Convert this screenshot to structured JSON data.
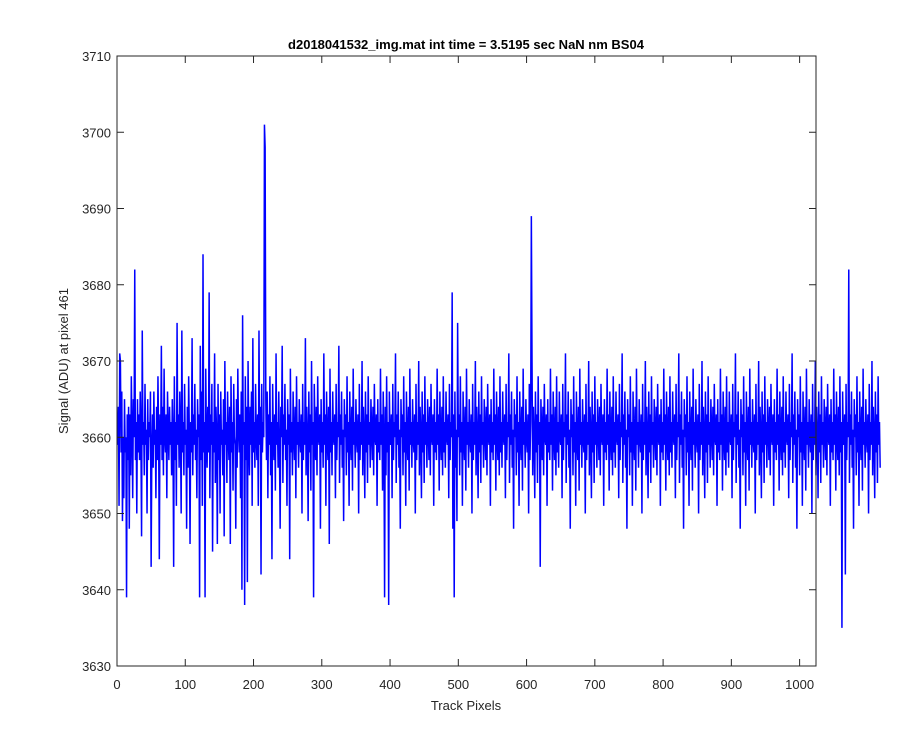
{
  "chart_data": {
    "type": "line",
    "title": "d2018041532_img.mat int time = 3.5195 sec  NaN nm BS04",
    "xlabel": "Track Pixels",
    "ylabel": "Signal (ADU) at pixel 461",
    "xlim": [
      0,
      1024
    ],
    "ylim": [
      3630,
      3710
    ],
    "xticks": [
      0,
      100,
      200,
      300,
      400,
      500,
      600,
      700,
      800,
      900,
      1000
    ],
    "yticks": [
      3630,
      3640,
      3650,
      3660,
      3670,
      3680,
      3690,
      3700,
      3710
    ],
    "grid": false,
    "line_color": "#0000ff",
    "series": [
      {
        "x_start": 1,
        "x_step": 1,
        "values": [
          3659,
          3664,
          3651,
          3671,
          3670,
          3658,
          3666,
          3649,
          3660,
          3652,
          3665,
          3658,
          3660,
          3639,
          3663,
          3657,
          3664,
          3648,
          3663,
          3655,
          3668,
          3661,
          3652,
          3665,
          3660,
          3682,
          3657,
          3662,
          3650,
          3665,
          3658,
          3663,
          3657,
          3666,
          3660,
          3647,
          3674,
          3659,
          3662,
          3655,
          3667,
          3659,
          3661,
          3650,
          3665,
          3657,
          3662,
          3660,
          3666,
          3643,
          3658,
          3663,
          3656,
          3666,
          3659,
          3661,
          3652,
          3664,
          3657,
          3668,
          3660,
          3644,
          3663,
          3659,
          3672,
          3657,
          3664,
          3655,
          3669,
          3660,
          3658,
          3663,
          3652,
          3666,
          3661,
          3657,
          3664,
          3659,
          3662,
          3655,
          3665,
          3660,
          3643,
          3668,
          3657,
          3662,
          3651,
          3675,
          3659,
          3663,
          3656,
          3666,
          3661,
          3650,
          3674,
          3658,
          3662,
          3655,
          3667,
          3659,
          3661,
          3648,
          3664,
          3656,
          3668,
          3660,
          3646,
          3662,
          3658,
          3673,
          3655,
          3663,
          3659,
          3667,
          3657,
          3661,
          3652,
          3665,
          3660,
          3663,
          3639,
          3672,
          3657,
          3666,
          3651,
          3684,
          3658,
          3662,
          3639,
          3669,
          3660,
          3656,
          3664,
          3658,
          3679,
          3652,
          3663,
          3659,
          3667,
          3645,
          3662,
          3658,
          3671,
          3654,
          3664,
          3660,
          3646,
          3667,
          3657,
          3663,
          3650,
          3666,
          3659,
          3661,
          3655,
          3665,
          3647,
          3670,
          3659,
          3662,
          3654,
          3666,
          3660,
          3657,
          3664,
          3646,
          3668,
          3658,
          3662,
          3653,
          3667,
          3660,
          3659,
          3648,
          3665,
          3656,
          3669,
          3661,
          3658,
          3663,
          3652,
          3666,
          3640,
          3676,
          3659,
          3662,
          3638,
          3668,
          3657,
          3664,
          3641,
          3670,
          3660,
          3655,
          3664,
          3659,
          3666,
          3651,
          3673,
          3658,
          3662,
          3656,
          3667,
          3660,
          3657,
          3663,
          3651,
          3674,
          3659,
          3664,
          3642,
          3667,
          3658,
          3662,
          3660,
          3701,
          3698,
          3665,
          3657,
          3666,
          3652,
          3663,
          3659,
          3668,
          3655,
          3662,
          3644,
          3667,
          3660,
          3657,
          3663,
          3653,
          3671,
          3659,
          3662,
          3656,
          3666,
          3658,
          3648,
          3664,
          3660,
          3672,
          3654,
          3663,
          3659,
          3667,
          3657,
          3661,
          3651,
          3665,
          3659,
          3663,
          3644,
          3669,
          3658,
          3662,
          3655,
          3666,
          3660,
          3657,
          3664,
          3652,
          3668,
          3659,
          3662,
          3656,
          3665,
          3660,
          3658,
          3663,
          3650,
          3667,
          3657,
          3662,
          3659,
          3673,
          3655,
          3664,
          3660,
          3649,
          3666,
          3658,
          3663,
          3653,
          3670,
          3659,
          3662,
          3639,
          3667,
          3661,
          3657,
          3664,
          3655,
          3668,
          3660,
          3659,
          3663,
          3648,
          3665,
          3658,
          3662,
          3656,
          3671,
          3659,
          3663,
          3651,
          3666,
          3660,
          3657,
          3664,
          3646,
          3669,
          3658,
          3662,
          3655,
          3666,
          3660,
          3659,
          3663,
          3652,
          3667,
          3657,
          3662,
          3660,
          3672,
          3654,
          3663,
          3659,
          3666,
          3656,
          3661,
          3649,
          3665,
          3660,
          3663,
          3655,
          3668,
          3658,
          3662,
          3651,
          3666,
          3660,
          3657,
          3664,
          3653,
          3669,
          3659,
          3662,
          3656,
          3665,
          3660,
          3658,
          3663,
          3650,
          3667,
          3657,
          3662,
          3659,
          3670,
          3655,
          3664,
          3660,
          3652,
          3666,
          3658,
          3663,
          3654,
          3668,
          3659,
          3662,
          3656,
          3665,
          3661,
          3657,
          3664,
          3655,
          3667,
          3660,
          3659,
          3663,
          3651,
          3665,
          3658,
          3662,
          3657,
          3669,
          3659,
          3663,
          3653,
          3666,
          3660,
          3639,
          3664,
          3655,
          3668,
          3658,
          3662,
          3638,
          3666,
          3660,
          3659,
          3663,
          3652,
          3667,
          3657,
          3662,
          3660,
          3671,
          3654,
          3663,
          3659,
          3666,
          3656,
          3661,
          3648,
          3665,
          3660,
          3663,
          3655,
          3668,
          3658,
          3662,
          3651,
          3666,
          3660,
          3657,
          3664,
          3653,
          3669,
          3659,
          3662,
          3656,
          3665,
          3660,
          3658,
          3663,
          3650,
          3667,
          3657,
          3662,
          3659,
          3670,
          3655,
          3664,
          3660,
          3652,
          3666,
          3658,
          3663,
          3654,
          3668,
          3659,
          3662,
          3656,
          3665,
          3661,
          3657,
          3664,
          3655,
          3667,
          3660,
          3659,
          3663,
          3651,
          3665,
          3658,
          3662,
          3657,
          3669,
          3659,
          3663,
          3653,
          3666,
          3660,
          3657,
          3664,
          3655,
          3668,
          3658,
          3662,
          3656,
          3666,
          3660,
          3659,
          3663,
          3652,
          3667,
          3657,
          3662,
          3660,
          3679,
          3648,
          3663,
          3639,
          3666,
          3656,
          3661,
          3649,
          3675,
          3660,
          3663,
          3655,
          3668,
          3658,
          3662,
          3651,
          3666,
          3660,
          3657,
          3664,
          3653,
          3669,
          3659,
          3662,
          3656,
          3665,
          3660,
          3658,
          3663,
          3650,
          3667,
          3657,
          3662,
          3659,
          3670,
          3655,
          3664,
          3660,
          3652,
          3666,
          3658,
          3663,
          3654,
          3668,
          3659,
          3662,
          3656,
          3665,
          3661,
          3657,
          3664,
          3655,
          3667,
          3660,
          3659,
          3663,
          3651,
          3665,
          3658,
          3662,
          3657,
          3669,
          3659,
          3663,
          3653,
          3666,
          3660,
          3657,
          3664,
          3655,
          3668,
          3658,
          3662,
          3656,
          3666,
          3660,
          3659,
          3663,
          3652,
          3667,
          3657,
          3662,
          3660,
          3671,
          3654,
          3663,
          3659,
          3666,
          3656,
          3661,
          3648,
          3665,
          3660,
          3663,
          3655,
          3668,
          3658,
          3662,
          3651,
          3666,
          3660,
          3657,
          3664,
          3653,
          3669,
          3659,
          3662,
          3656,
          3665,
          3660,
          3658,
          3663,
          3650,
          3667,
          3657,
          3662,
          3689,
          3670,
          3655,
          3664,
          3660,
          3652,
          3666,
          3658,
          3663,
          3654,
          3668,
          3659,
          3662,
          3643,
          3665,
          3661,
          3657,
          3664,
          3655,
          3667,
          3660,
          3659,
          3663,
          3651,
          3665,
          3658,
          3662,
          3657,
          3669,
          3659,
          3663,
          3653,
          3666,
          3660,
          3657,
          3664,
          3655,
          3668,
          3658,
          3662,
          3656,
          3666,
          3660,
          3659,
          3663,
          3652,
          3667,
          3657,
          3662,
          3660,
          3671,
          3654,
          3663,
          3659,
          3666,
          3656,
          3661,
          3648,
          3665,
          3660,
          3663,
          3655,
          3668,
          3658,
          3662,
          3651,
          3666,
          3660,
          3657,
          3664,
          3653,
          3669,
          3659,
          3662,
          3656,
          3665,
          3660,
          3658,
          3663,
          3650,
          3667,
          3657,
          3662,
          3659,
          3670,
          3655,
          3664,
          3660,
          3652,
          3666,
          3658,
          3663,
          3654,
          3668,
          3659,
          3662,
          3656,
          3665,
          3661,
          3657,
          3664,
          3655,
          3667,
          3660,
          3659,
          3663,
          3651,
          3665,
          3658,
          3662,
          3657,
          3669,
          3659,
          3663,
          3653,
          3666,
          3660,
          3657,
          3664,
          3655,
          3668,
          3658,
          3662,
          3656,
          3666,
          3660,
          3659,
          3663,
          3652,
          3667,
          3657,
          3662,
          3660,
          3671,
          3654,
          3663,
          3659,
          3666,
          3656,
          3661,
          3648,
          3665,
          3660,
          3663,
          3655,
          3668,
          3658,
          3662,
          3651,
          3666,
          3660,
          3657,
          3664,
          3653,
          3669,
          3659,
          3662,
          3656,
          3665,
          3660,
          3658,
          3663,
          3650,
          3667,
          3657,
          3662,
          3659,
          3670,
          3655,
          3664,
          3660,
          3652,
          3666,
          3658,
          3663,
          3654,
          3668,
          3659,
          3662,
          3656,
          3665,
          3661,
          3657,
          3664,
          3655,
          3667,
          3660,
          3659,
          3663,
          3651,
          3665,
          3658,
          3662,
          3657,
          3669,
          3659,
          3663,
          3653,
          3666,
          3660,
          3657,
          3664,
          3655,
          3668,
          3658,
          3662,
          3656,
          3666,
          3660,
          3659,
          3663,
          3652,
          3667,
          3657,
          3662,
          3660,
          3671,
          3654,
          3663,
          3659,
          3666,
          3656,
          3661,
          3648,
          3665,
          3660,
          3663,
          3655,
          3668,
          3658,
          3662,
          3651,
          3666,
          3660,
          3657,
          3664,
          3653,
          3669,
          3659,
          3662,
          3656,
          3665,
          3660,
          3658,
          3663,
          3650,
          3667,
          3657,
          3662,
          3659,
          3670,
          3655,
          3664,
          3660,
          3652,
          3666,
          3658,
          3663,
          3654,
          3668,
          3659,
          3662,
          3656,
          3665,
          3661,
          3657,
          3664,
          3655,
          3667,
          3660,
          3659,
          3663,
          3651,
          3665,
          3658,
          3662,
          3657,
          3669,
          3659,
          3663,
          3653,
          3666,
          3660,
          3657,
          3664,
          3655,
          3668,
          3658,
          3662,
          3656,
          3666,
          3660,
          3659,
          3663,
          3652,
          3667,
          3657,
          3662,
          3660,
          3671,
          3654,
          3663,
          3659,
          3666,
          3656,
          3661,
          3648,
          3665,
          3660,
          3663,
          3655,
          3668,
          3658,
          3662,
          3651,
          3666,
          3660,
          3657,
          3664,
          3653,
          3669,
          3659,
          3662,
          3656,
          3665,
          3660,
          3658,
          3663,
          3650,
          3667,
          3657,
          3662,
          3659,
          3670,
          3655,
          3664,
          3660,
          3652,
          3666,
          3658,
          3663,
          3654,
          3668,
          3659,
          3662,
          3656,
          3665,
          3661,
          3657,
          3664,
          3655,
          3667,
          3660,
          3659,
          3663,
          3651,
          3665,
          3658,
          3662,
          3657,
          3669,
          3659,
          3663,
          3653,
          3666,
          3660,
          3657,
          3664,
          3655,
          3668,
          3658,
          3662,
          3656,
          3666,
          3660,
          3659,
          3663,
          3652,
          3667,
          3657,
          3662,
          3660,
          3671,
          3654,
          3663,
          3659,
          3666,
          3656,
          3661,
          3648,
          3665,
          3660,
          3663,
          3655,
          3668,
          3658,
          3662,
          3651,
          3666,
          3660,
          3657,
          3664,
          3653,
          3669,
          3659,
          3662,
          3656,
          3665,
          3660,
          3658,
          3663,
          3650,
          3667,
          3657,
          3662,
          3659,
          3670,
          3655,
          3664,
          3660,
          3652,
          3666,
          3658,
          3663,
          3654,
          3668,
          3659,
          3662,
          3656,
          3665,
          3661,
          3657,
          3664,
          3655,
          3667,
          3660,
          3659,
          3663,
          3651,
          3665,
          3658,
          3662,
          3657,
          3669,
          3659,
          3663,
          3653,
          3666,
          3660,
          3657,
          3664,
          3655,
          3668,
          3658,
          3662,
          3635,
          3666,
          3660,
          3659,
          3663,
          3642,
          3667,
          3657,
          3662,
          3660,
          3682,
          3654,
          3663,
          3659,
          3666,
          3656,
          3661,
          3648,
          3665,
          3660,
          3663,
          3655,
          3668,
          3658,
          3662,
          3651,
          3666,
          3660,
          3657,
          3664,
          3653,
          3669,
          3659,
          3662,
          3656,
          3665,
          3660,
          3658,
          3663,
          3650,
          3667,
          3657,
          3662,
          3659,
          3670,
          3655,
          3664,
          3660,
          3652,
          3666,
          3658,
          3663,
          3654,
          3668,
          3659,
          3662,
          3656
        ]
      }
    ]
  }
}
